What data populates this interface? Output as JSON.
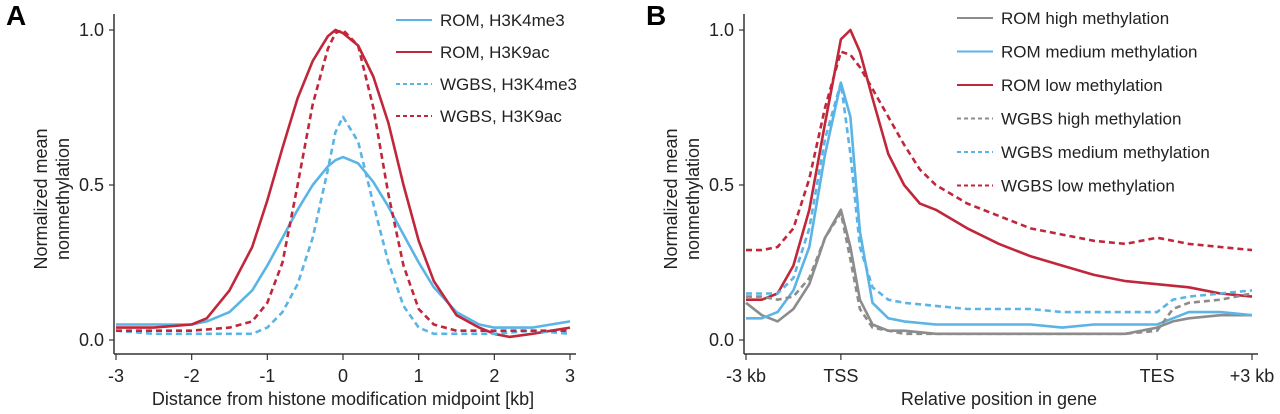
{
  "chart_data": [
    {
      "panel": "A",
      "type": "line",
      "xlabel": "Distance from histone modification midpoint [kb]",
      "ylabel": [
        "Normalized mean",
        "nonmethylation"
      ],
      "xlim": [
        -3,
        3
      ],
      "ylim": [
        0,
        1
      ],
      "xticks": [
        -3,
        -2,
        -1,
        0,
        1,
        2,
        3
      ],
      "xtick_labels": [
        "-3",
        "-2",
        "-1",
        "0",
        "1",
        "2",
        "3"
      ],
      "yticks": [
        0,
        0.5,
        1
      ],
      "ytick_labels": [
        "0.0",
        "0.5",
        "1.0"
      ],
      "legend_position": "top-right",
      "series": [
        {
          "name": "ROM, H3K4me3",
          "color": "#5ab4e5",
          "dash": "solid",
          "x": [
            -3,
            -2.5,
            -2,
            -1.8,
            -1.5,
            -1.2,
            -1,
            -0.8,
            -0.6,
            -0.4,
            -0.2,
            -0.1,
            0,
            0.2,
            0.4,
            0.6,
            0.8,
            1,
            1.2,
            1.5,
            1.8,
            2,
            2.5,
            3
          ],
          "y": [
            0.05,
            0.05,
            0.05,
            0.06,
            0.09,
            0.16,
            0.24,
            0.33,
            0.42,
            0.5,
            0.56,
            0.58,
            0.59,
            0.57,
            0.51,
            0.43,
            0.34,
            0.25,
            0.17,
            0.09,
            0.05,
            0.04,
            0.04,
            0.06
          ]
        },
        {
          "name": "ROM, H3K9ac",
          "color": "#c0273a",
          "dash": "solid",
          "x": [
            -3,
            -2.5,
            -2,
            -1.8,
            -1.5,
            -1.2,
            -1,
            -0.8,
            -0.6,
            -0.4,
            -0.2,
            -0.1,
            0,
            0.2,
            0.4,
            0.6,
            0.8,
            1,
            1.2,
            1.5,
            1.8,
            2,
            2.2,
            2.5,
            3
          ],
          "y": [
            0.04,
            0.04,
            0.05,
            0.07,
            0.16,
            0.3,
            0.45,
            0.62,
            0.78,
            0.9,
            0.98,
            1.0,
            0.99,
            0.95,
            0.85,
            0.7,
            0.5,
            0.32,
            0.19,
            0.08,
            0.04,
            0.02,
            0.01,
            0.02,
            0.04
          ]
        },
        {
          "name": "WGBS, H3K4me3",
          "color": "#5ab4e5",
          "dash": "dashed",
          "x": [
            -3,
            -2.5,
            -2,
            -1.5,
            -1.2,
            -1,
            -0.8,
            -0.6,
            -0.4,
            -0.2,
            -0.1,
            0,
            0.2,
            0.4,
            0.6,
            0.8,
            1,
            1.2,
            1.5,
            2,
            2.5,
            3
          ],
          "y": [
            0.03,
            0.02,
            0.02,
            0.02,
            0.02,
            0.04,
            0.09,
            0.18,
            0.33,
            0.55,
            0.67,
            0.72,
            0.64,
            0.44,
            0.25,
            0.11,
            0.04,
            0.02,
            0.02,
            0.02,
            0.03,
            0.02
          ]
        },
        {
          "name": "WGBS, H3K9ac",
          "color": "#c0273a",
          "dash": "dashed",
          "x": [
            -3,
            -2.5,
            -2,
            -1.5,
            -1.2,
            -1,
            -0.8,
            -0.6,
            -0.4,
            -0.2,
            -0.1,
            0,
            0.2,
            0.4,
            0.6,
            0.8,
            1,
            1.2,
            1.5,
            2,
            2.5,
            3
          ],
          "y": [
            0.03,
            0.03,
            0.03,
            0.04,
            0.06,
            0.12,
            0.25,
            0.5,
            0.76,
            0.94,
            0.99,
            1.0,
            0.95,
            0.75,
            0.47,
            0.24,
            0.1,
            0.05,
            0.03,
            0.03,
            0.03,
            0.03
          ]
        }
      ]
    },
    {
      "panel": "B",
      "type": "line",
      "xlabel": "Relative position in gene",
      "ylabel": [
        "Normalized mean",
        "nonmethylation"
      ],
      "xlim": [
        -3,
        13
      ],
      "ylim": [
        0,
        1
      ],
      "xticks": [
        -3,
        0,
        10,
        13
      ],
      "xtick_labels": [
        "-3 kb",
        "TSS",
        "TES",
        "+3 kb"
      ],
      "yticks": [
        0,
        0.5,
        1
      ],
      "ytick_labels": [
        "0.0",
        "0.5",
        "1.0"
      ],
      "legend_position": "top-right",
      "series": [
        {
          "name": "ROM high methylation",
          "color": "#8c8c8c",
          "dash": "solid",
          "x": [
            -3,
            -2.5,
            -2,
            -1.5,
            -1,
            -0.5,
            0,
            0.3,
            0.6,
            1,
            1.5,
            2,
            3,
            4,
            5,
            6,
            7,
            8,
            9,
            10,
            10.5,
            11,
            12,
            13
          ],
          "y": [
            0.12,
            0.08,
            0.06,
            0.1,
            0.18,
            0.33,
            0.42,
            0.3,
            0.13,
            0.05,
            0.03,
            0.03,
            0.02,
            0.02,
            0.02,
            0.02,
            0.02,
            0.02,
            0.02,
            0.04,
            0.06,
            0.07,
            0.08,
            0.08
          ]
        },
        {
          "name": "ROM medium methylation",
          "color": "#5ab4e5",
          "dash": "solid",
          "x": [
            -3,
            -2.5,
            -2,
            -1.5,
            -1,
            -0.5,
            0,
            0.3,
            0.6,
            1,
            1.5,
            2,
            3,
            4,
            5,
            6,
            7,
            8,
            9,
            10,
            10.5,
            11,
            12,
            13
          ],
          "y": [
            0.07,
            0.07,
            0.09,
            0.16,
            0.3,
            0.6,
            0.83,
            0.72,
            0.35,
            0.12,
            0.07,
            0.06,
            0.05,
            0.05,
            0.05,
            0.05,
            0.04,
            0.05,
            0.05,
            0.05,
            0.07,
            0.09,
            0.09,
            0.08
          ]
        },
        {
          "name": "ROM low methylation",
          "color": "#c0273a",
          "dash": "solid",
          "x": [
            -3,
            -2.5,
            -2,
            -1.5,
            -1,
            -0.5,
            0,
            0.3,
            0.6,
            1,
            1.5,
            2,
            2.5,
            3,
            4,
            5,
            6,
            7,
            8,
            9,
            10,
            11,
            12,
            13
          ],
          "y": [
            0.13,
            0.13,
            0.15,
            0.24,
            0.42,
            0.7,
            0.97,
            1.0,
            0.93,
            0.78,
            0.6,
            0.5,
            0.44,
            0.42,
            0.36,
            0.31,
            0.27,
            0.24,
            0.21,
            0.19,
            0.18,
            0.17,
            0.15,
            0.14
          ]
        },
        {
          "name": "WGBS high methylation",
          "color": "#8c8c8c",
          "dash": "dashed",
          "x": [
            -3,
            -2.5,
            -2,
            -1.5,
            -1,
            -0.5,
            0,
            0.3,
            0.6,
            1,
            1.5,
            2,
            3,
            4,
            5,
            6,
            7,
            8,
            9,
            10,
            10.5,
            11,
            12,
            13
          ],
          "y": [
            0.14,
            0.14,
            0.13,
            0.14,
            0.2,
            0.33,
            0.41,
            0.26,
            0.1,
            0.04,
            0.03,
            0.02,
            0.02,
            0.02,
            0.02,
            0.02,
            0.02,
            0.02,
            0.02,
            0.03,
            0.1,
            0.12,
            0.13,
            0.15
          ]
        },
        {
          "name": "WGBS medium methylation",
          "color": "#5ab4e5",
          "dash": "dashed",
          "x": [
            -3,
            -2.5,
            -2,
            -1.5,
            -1,
            -0.5,
            0,
            0.3,
            0.6,
            1,
            1.5,
            2,
            3,
            4,
            5,
            6,
            7,
            8,
            9,
            10,
            10.5,
            11,
            12,
            13
          ],
          "y": [
            0.15,
            0.15,
            0.15,
            0.2,
            0.36,
            0.65,
            0.83,
            0.6,
            0.3,
            0.17,
            0.13,
            0.12,
            0.11,
            0.1,
            0.1,
            0.1,
            0.09,
            0.09,
            0.09,
            0.09,
            0.13,
            0.14,
            0.15,
            0.16
          ]
        },
        {
          "name": "WGBS low methylation",
          "color": "#c0273a",
          "dash": "dashed",
          "x": [
            -3,
            -2.5,
            -2,
            -1.5,
            -1,
            -0.5,
            0,
            0.3,
            0.6,
            1,
            1.5,
            2,
            2.5,
            3,
            4,
            5,
            6,
            7,
            8,
            9,
            10,
            11,
            12,
            13
          ],
          "y": [
            0.29,
            0.29,
            0.3,
            0.36,
            0.52,
            0.75,
            0.93,
            0.92,
            0.88,
            0.81,
            0.72,
            0.63,
            0.55,
            0.5,
            0.44,
            0.4,
            0.36,
            0.34,
            0.32,
            0.31,
            0.33,
            0.31,
            0.3,
            0.29
          ]
        }
      ]
    }
  ]
}
